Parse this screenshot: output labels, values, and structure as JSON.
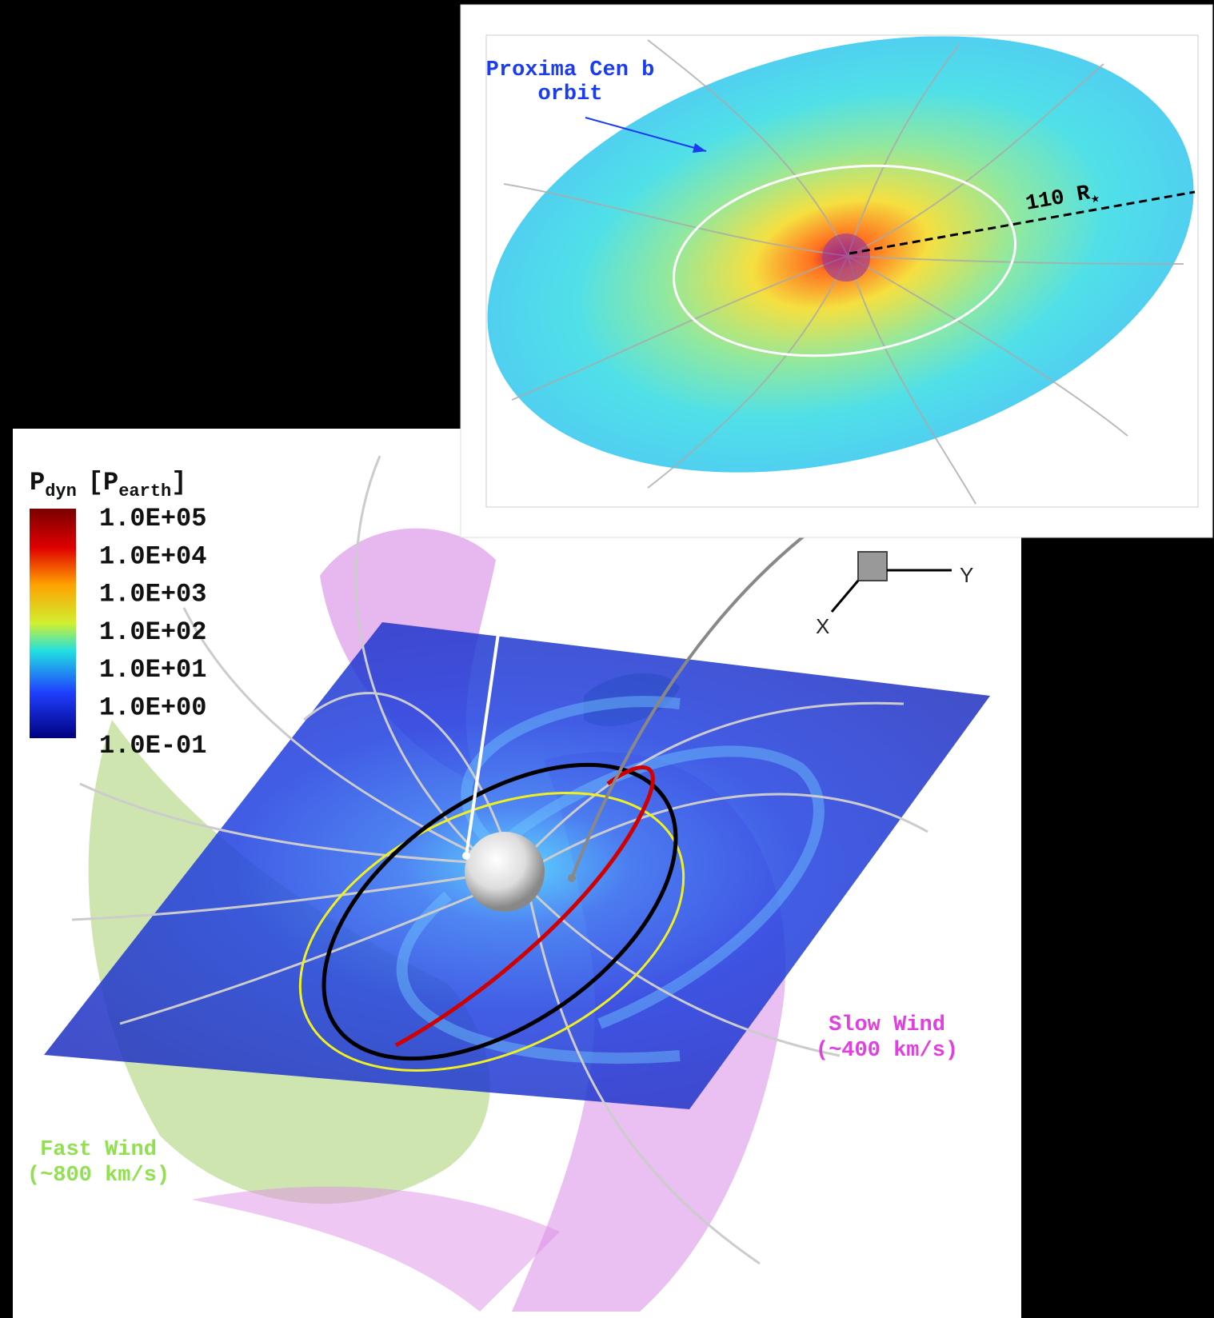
{
  "colorbar": {
    "title_parts": [
      "P",
      "dyn",
      "[P",
      "earth",
      "]"
    ],
    "labels": [
      "1.0E+05",
      "1.0E+04",
      "1.0E+03",
      "1.0E+02",
      "1.0E+01",
      "1.0E+00",
      "1.0E-01"
    ]
  },
  "inset": {
    "orbit_label": [
      "Proxima Cen b",
      "orbit"
    ],
    "distance_label": [
      "110 R",
      "★"
    ]
  },
  "annotations": {
    "slow_wind": [
      "Slow Wind",
      "(~400 km/s)"
    ],
    "fast_wind": [
      "Fast Wind",
      "(~800 km/s)"
    ]
  },
  "axes": {
    "y": "Y",
    "x": "X"
  }
}
